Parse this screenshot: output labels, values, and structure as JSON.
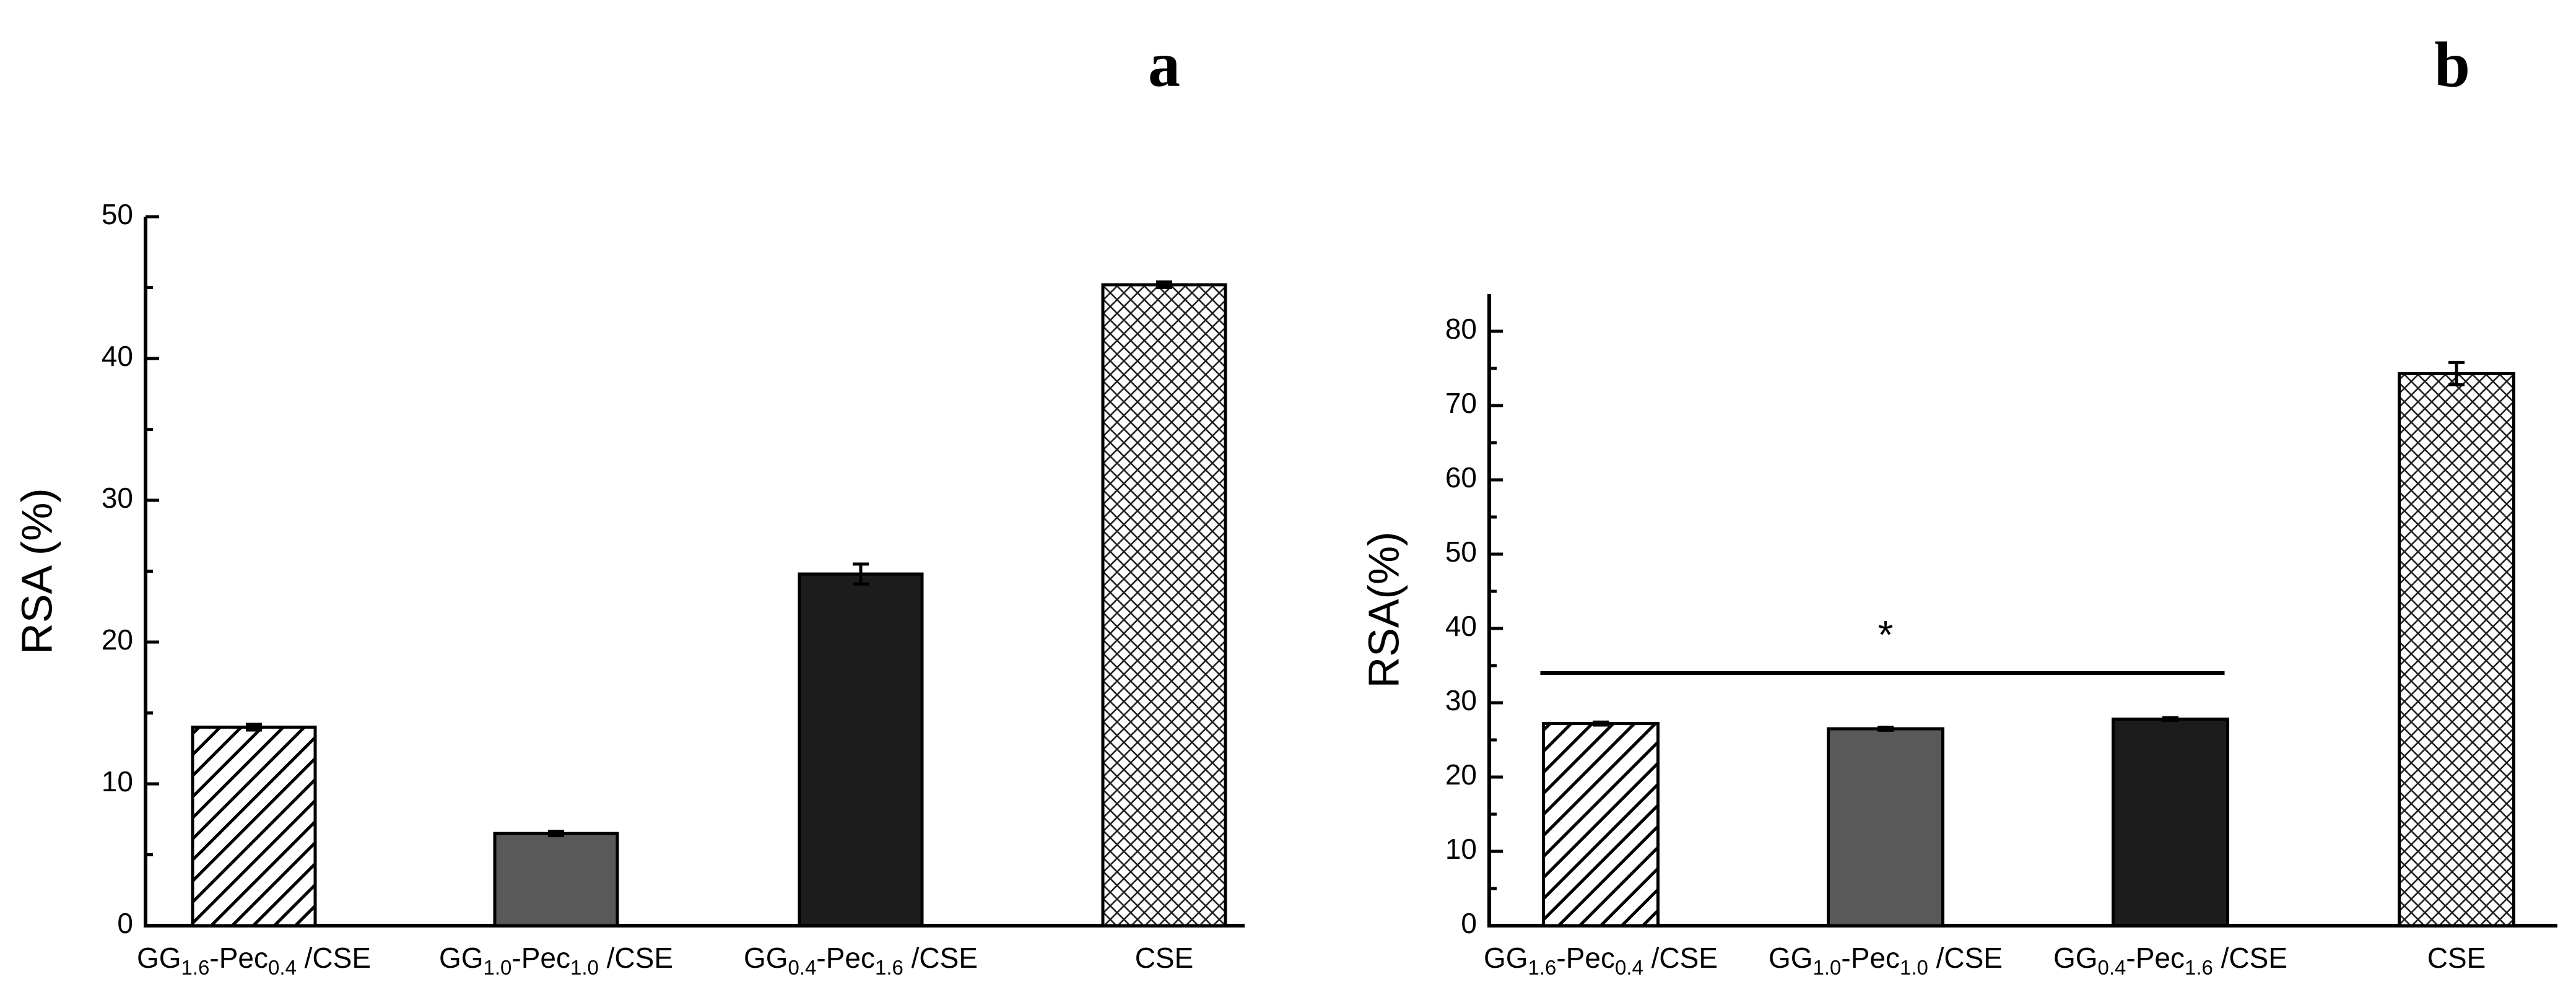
{
  "chart_data": [
    {
      "type": "bar",
      "panel": "a",
      "title": "",
      "xlabel": "",
      "ylabel": "RSA (%)",
      "ylim": [
        0,
        50
      ],
      "yticks": [
        0,
        10,
        20,
        30,
        40,
        50
      ],
      "grid": false,
      "categories": [
        {
          "base": "GG",
          "sub1": "1.6",
          "mid": "-Pec",
          "sub2": "0.4",
          "tail": " /CSE"
        },
        {
          "base": "GG",
          "sub1": "1.0",
          "mid": "-Pec",
          "sub2": "1.0",
          "tail": " /CSE"
        },
        {
          "base": "GG",
          "sub1": "0.4",
          "mid": "-Pec",
          "sub2": "1.6",
          "tail": " /CSE"
        },
        {
          "base": "CSE",
          "sub1": "",
          "mid": "",
          "sub2": "",
          "tail": ""
        }
      ],
      "values": [
        14.0,
        6.5,
        24.8,
        45.2
      ],
      "errors": [
        0.2,
        0.15,
        0.7,
        0.2
      ],
      "fills": [
        "hatch-diag",
        "#595959",
        "#1c1c1c",
        "hatch-cross"
      ]
    },
    {
      "type": "bar",
      "panel": "b",
      "title": "",
      "xlabel": "",
      "ylabel": "RSA(%)",
      "ylim": [
        0,
        85
      ],
      "yticks": [
        0,
        10,
        20,
        30,
        40,
        50,
        60,
        70,
        80
      ],
      "grid": false,
      "categories": [
        {
          "base": "GG",
          "sub1": "1.6",
          "mid": "-Pec",
          "sub2": "0.4",
          "tail": " /CSE"
        },
        {
          "base": "GG",
          "sub1": "1.0",
          "mid": "-Pec",
          "sub2": "1.0",
          "tail": " /CSE"
        },
        {
          "base": "GG",
          "sub1": "0.4",
          "mid": "-Pec",
          "sub2": "1.6",
          "tail": " /CSE"
        },
        {
          "base": "CSE",
          "sub1": "",
          "mid": "",
          "sub2": "",
          "tail": ""
        }
      ],
      "values": [
        27.2,
        26.5,
        27.8,
        74.3
      ],
      "errors": [
        0.2,
        0.2,
        0.2,
        1.5
      ],
      "fills": [
        "hatch-diag",
        "#595959",
        "#1c1c1c",
        "hatch-cross"
      ],
      "annotation": {
        "text": "*",
        "y_value": 34,
        "from_category": 0,
        "to_category": 2
      }
    }
  ]
}
